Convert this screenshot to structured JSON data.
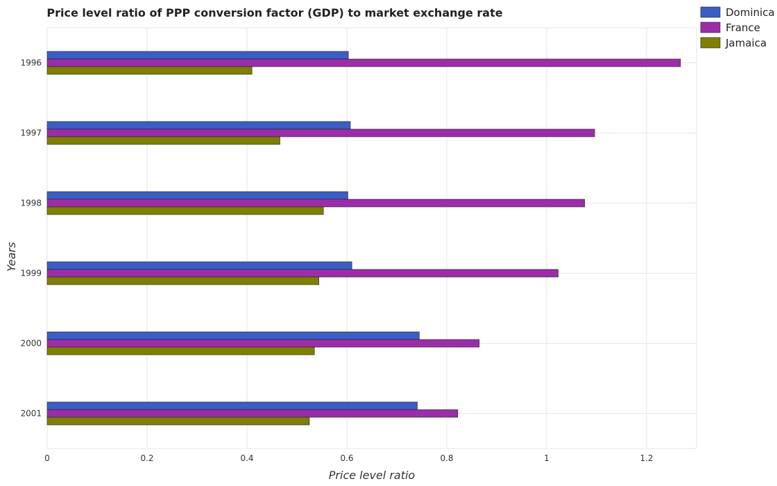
{
  "chart_data": {
    "type": "bar",
    "orientation": "horizontal",
    "title": "Price level ratio of PPP conversion factor (GDP) to market exchange rate",
    "xlabel": "Price level ratio",
    "ylabel": "Years",
    "categories": [
      "1996",
      "1997",
      "1998",
      "1999",
      "2000",
      "2001"
    ],
    "series": [
      {
        "name": "Dominica",
        "color": "#3b5ec4",
        "values": [
          0.603,
          0.607,
          0.602,
          0.61,
          0.745,
          0.741
        ]
      },
      {
        "name": "France",
        "color": "#9b2ea8",
        "values": [
          1.268,
          1.096,
          1.076,
          1.023,
          0.865,
          0.822
        ]
      },
      {
        "name": "Jamaica",
        "color": "#7f7f00",
        "values": [
          0.41,
          0.466,
          0.553,
          0.544,
          0.535,
          0.525
        ]
      }
    ],
    "xlim": [
      0,
      1.3
    ],
    "xticks": [
      0,
      0.2,
      0.4,
      0.6,
      0.8,
      1.0,
      1.2
    ],
    "xtick_labels": [
      "0",
      "0.2",
      "0.4",
      "0.6",
      "0.8",
      "1",
      "1.2"
    ],
    "grid": true,
    "legend_position": "top-right"
  }
}
